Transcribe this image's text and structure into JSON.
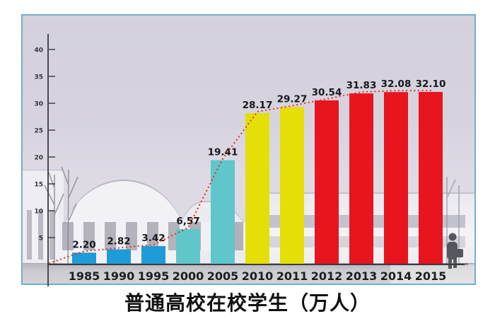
{
  "page": {
    "title": "普通高校在校学生（万人）"
  },
  "colors": {
    "photo_border": "#6fb0cf",
    "axis": "#4a4a52",
    "baseline": "#3c3c40",
    "tick_label": "#33333d",
    "value_label": "#17171a",
    "year_label": "#1d1d22",
    "trend_line": "#e43117",
    "bar_blue": "#1e9cd7",
    "bar_teal": "#5fc7cb",
    "bar_yellow": "#e4df07",
    "bar_red": "#e8141e"
  },
  "chart_data": {
    "type": "bar",
    "title": "普通高校在校学生（万人）",
    "xlabel": "",
    "ylabel": "",
    "categories": [
      "1985",
      "1990",
      "1995",
      "2000",
      "2005",
      "2010",
      "2011",
      "2012",
      "2013",
      "2014",
      "2015"
    ],
    "values": [
      2.2,
      2.82,
      3.42,
      6.57,
      19.41,
      28.17,
      29.27,
      30.54,
      31.83,
      32.08,
      32.1
    ],
    "value_labels": [
      "2.20",
      "2.82",
      "3.42",
      "6,57",
      "19.41",
      "28.17",
      "29.27",
      "30.54",
      "31.83",
      "32.08",
      "32.10"
    ],
    "bar_colors": [
      "#1e9cd7",
      "#1e9cd7",
      "#1e9cd7",
      "#5fc7cb",
      "#5fc7cb",
      "#e4df07",
      "#e4df07",
      "#e8141e",
      "#e8141e",
      "#e8141e",
      "#e8141e"
    ],
    "y_ticks": [
      5,
      10,
      15,
      20,
      25,
      30,
      35,
      40
    ],
    "ylim": [
      0,
      42
    ],
    "grid": false,
    "legend": null,
    "trend_line": {
      "style": "dotted",
      "color": "#e43117",
      "connects": "bar tops, starting at axis origin"
    }
  }
}
